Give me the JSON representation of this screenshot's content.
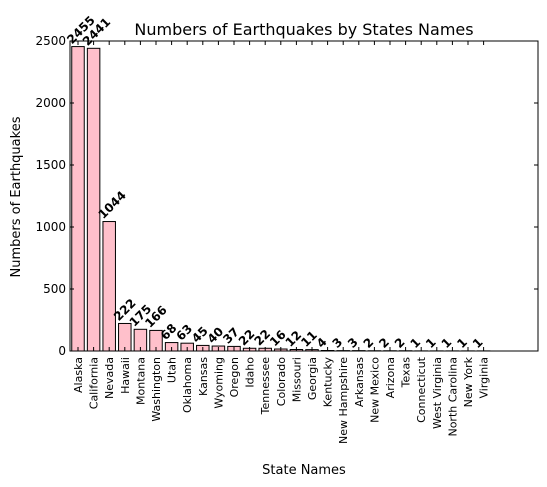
{
  "chart_data": {
    "type": "bar",
    "title": "Numbers of Earthquakes by States Names",
    "xlabel": "State Names",
    "ylabel": "Numbers of Earthquakes",
    "ylim": [
      0,
      2500
    ],
    "yticks": [
      0,
      500,
      1000,
      1500,
      2000,
      2500
    ],
    "bar_color": "#ffc0cb",
    "categories": [
      "Alaska",
      "California",
      "Nevada",
      "Hawaii",
      "Montana",
      "Washington",
      "Utah",
      "Oklahoma",
      "Kansas",
      "Wyoming",
      "Oregon",
      "Idaho",
      "Tennessee",
      "Colorado",
      "Missouri",
      "Georgia",
      "Kentucky",
      "New Hampshire",
      "Arkansas",
      "New Mexico",
      "Arizona",
      "Texas",
      "Connecticut",
      "West Virginia",
      "North Carolina",
      "New York",
      "Virginia"
    ],
    "values": [
      2455,
      2441,
      1044,
      222,
      175,
      166,
      68,
      63,
      45,
      40,
      37,
      22,
      22,
      16,
      12,
      11,
      4,
      3,
      3,
      2,
      2,
      2,
      1,
      1,
      1,
      1,
      1
    ],
    "grid": false,
    "legend": "none"
  }
}
